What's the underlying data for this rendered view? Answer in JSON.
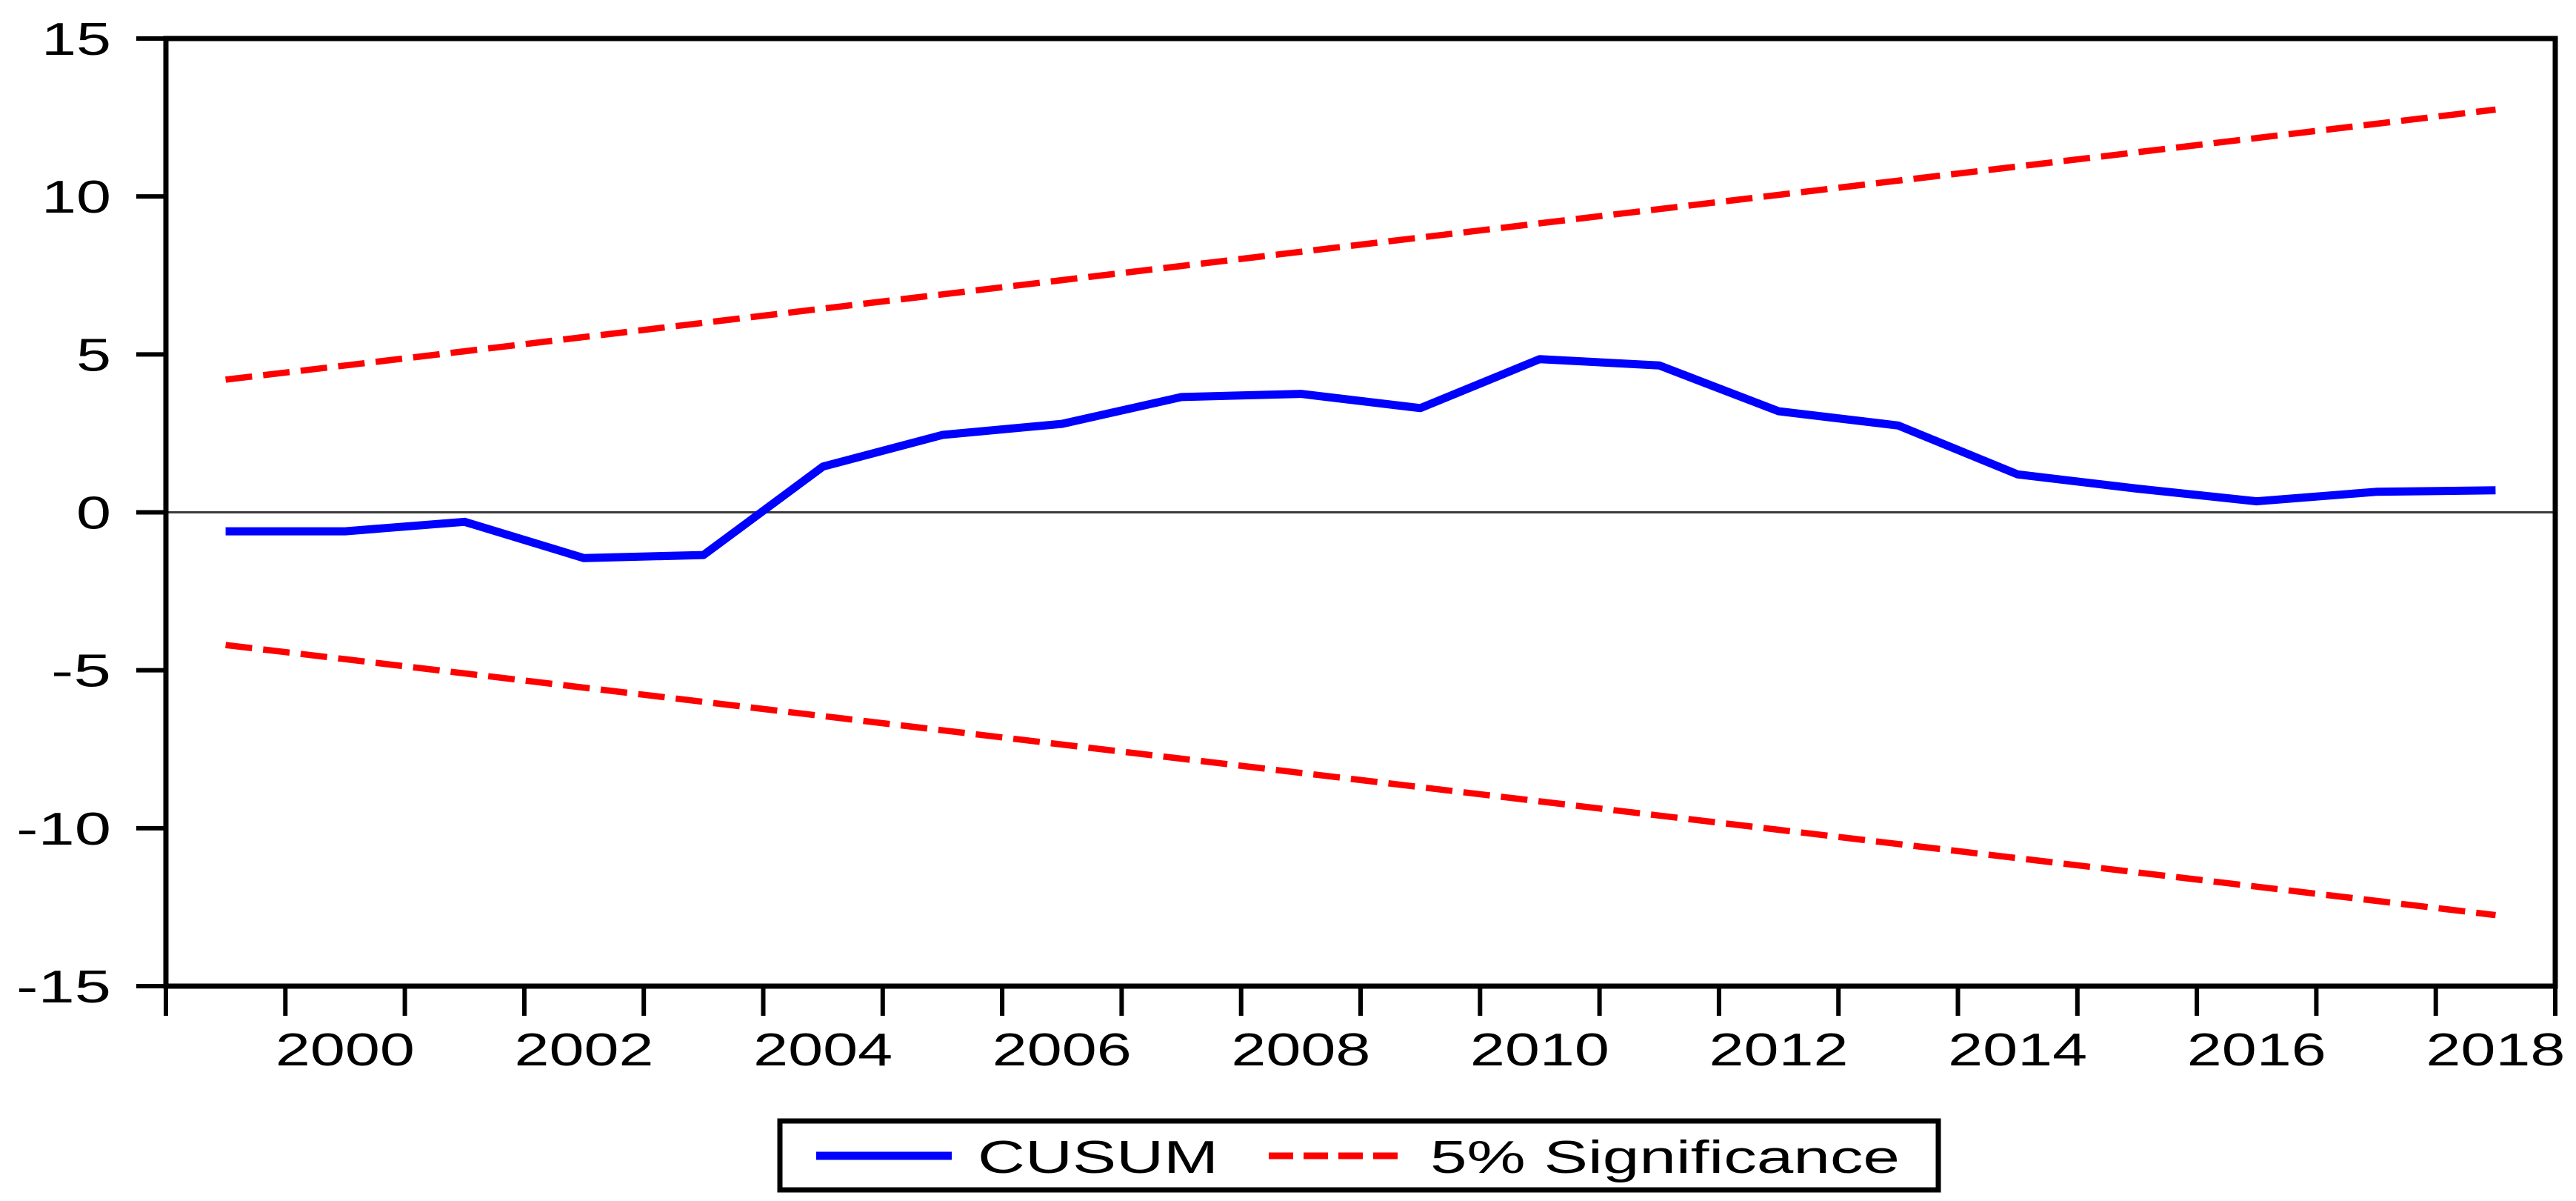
{
  "chart_data": {
    "type": "line",
    "title": "",
    "x": [
      1999,
      2000,
      2001,
      2002,
      2003,
      2004,
      2005,
      2006,
      2007,
      2008,
      2009,
      2010,
      2011,
      2012,
      2013,
      2014,
      2015,
      2016,
      2017,
      2018
    ],
    "series": [
      {
        "name": "CUSUM",
        "style": "solid",
        "color": "#0000ff",
        "values": [
          -0.6,
          -0.6,
          -0.3,
          -1.45,
          -1.35,
          1.45,
          2.45,
          2.8,
          3.65,
          3.75,
          3.3,
          4.85,
          4.65,
          3.2,
          2.75,
          1.2,
          0.75,
          0.35,
          0.65,
          0.7
        ]
      },
      {
        "name": "5% Significance (upper bound)",
        "style": "dashed",
        "color": "#ff0000",
        "values": [
          4.2,
          4.65,
          5.1,
          5.55,
          6.0,
          6.45,
          6.9,
          7.35,
          7.8,
          8.25,
          8.7,
          9.15,
          9.6,
          10.05,
          10.5,
          10.95,
          11.4,
          11.85,
          12.3,
          12.75
        ]
      },
      {
        "name": "5% Significance (lower bound)",
        "style": "dashed",
        "color": "#ff0000",
        "values": [
          -4.2,
          -4.65,
          -5.1,
          -5.55,
          -6.0,
          -6.45,
          -6.9,
          -7.35,
          -7.8,
          -8.25,
          -8.7,
          -9.15,
          -9.6,
          -10.05,
          -10.5,
          -10.95,
          -11.4,
          -11.85,
          -12.3,
          -12.75
        ]
      }
    ],
    "legend_labels": [
      "CUSUM",
      "5% Significance"
    ],
    "legend_position": "bottom-center",
    "xlabel": "",
    "ylabel": "",
    "ylim": [
      -15,
      15
    ],
    "y_ticks": [
      15,
      10,
      5,
      0,
      -5,
      -10,
      -15
    ],
    "y_tick_labels": [
      "15",
      "10",
      "5",
      "0",
      "-5",
      "-10",
      "-15"
    ],
    "x_tick_labels": [
      "2000",
      "2002",
      "2004",
      "2006",
      "2008",
      "2010",
      "2012",
      "2014",
      "2016",
      "2018"
    ],
    "x_minor_ticks_every_year": true,
    "grid": "zero-line-only",
    "zero_line": true
  },
  "colors": {
    "cusum_line": "#0000ff",
    "significance_line": "#ff0000",
    "axis": "#000000",
    "zero_line": "#3a3a3a",
    "background": "#ffffff"
  }
}
